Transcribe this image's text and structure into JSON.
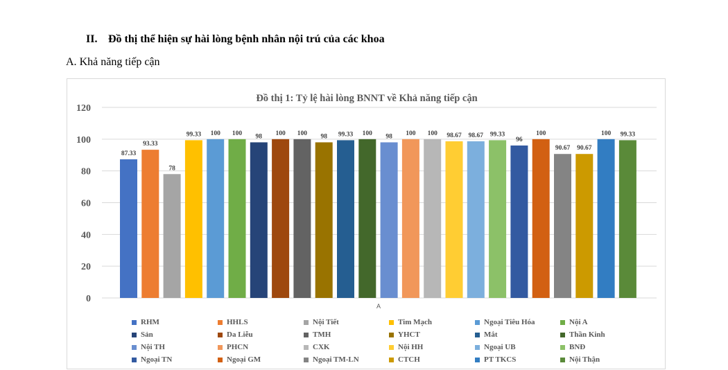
{
  "document": {
    "section_number": "II.",
    "section_title": "Đồ thị thể hiện sự hài lòng bệnh nhân nội trú của các khoa",
    "sub_letter": "A.",
    "sub_title": "Khả năng tiếp cận"
  },
  "chart_data": {
    "type": "bar",
    "title": "Đồ thị 1: Tỷ lệ hài lòng BNNT về Khả năng tiếp cận",
    "x_category_label": "A",
    "ylim": [
      0,
      120
    ],
    "yticks": [
      0,
      20,
      40,
      60,
      80,
      100,
      120
    ],
    "grid": true,
    "legend_position": "bottom",
    "series": [
      {
        "name": "RHM",
        "value": 87.33,
        "label": "87.33",
        "color": "#4472c4"
      },
      {
        "name": "HHLS",
        "value": 93.33,
        "label": "93.33",
        "color": "#ed7d31"
      },
      {
        "name": "Nội Tiết",
        "value": 78,
        "label": "78",
        "color": "#a5a5a5"
      },
      {
        "name": "Tim Mạch",
        "value": 99.33,
        "label": "99.33",
        "color": "#ffc000"
      },
      {
        "name": "Ngoại Tiêu Hóa",
        "value": 100,
        "label": "100",
        "color": "#5b9bd5"
      },
      {
        "name": "Nội A",
        "value": 100,
        "label": "100",
        "color": "#70ad47"
      },
      {
        "name": "Sản",
        "value": 98,
        "label": "98",
        "color": "#264478"
      },
      {
        "name": "Da Liễu",
        "value": 100,
        "label": "100",
        "color": "#9e480e"
      },
      {
        "name": "TMH",
        "value": 100,
        "label": "100",
        "color": "#636363"
      },
      {
        "name": "YHCT",
        "value": 98,
        "label": "98",
        "color": "#997300"
      },
      {
        "name": "Mắt",
        "value": 99.33,
        "label": "99.33",
        "color": "#255e91"
      },
      {
        "name": "Thần Kinh",
        "value": 100,
        "label": "100",
        "color": "#43682b"
      },
      {
        "name": " Nội TH",
        "value": 98,
        "label": "98",
        "color": "#698ed0"
      },
      {
        "name": "PHCN",
        "value": 100,
        "label": "100",
        "color": "#f1975a"
      },
      {
        "name": "CXK",
        "value": 100,
        "label": "100",
        "color": "#b7b7b7"
      },
      {
        "name": "Nội HH",
        "value": 98.67,
        "label": "98.67",
        "color": "#ffcd33"
      },
      {
        "name": "Ngoại UB",
        "value": 98.67,
        "label": "98.67",
        "color": "#7cafdd"
      },
      {
        "name": " BNĐ",
        "value": 99.33,
        "label": "99.33",
        "color": "#8cc168"
      },
      {
        "name": "Ngoại TN",
        "value": 96,
        "label": "96",
        "color": "#335aa1"
      },
      {
        "name": "Ngoại GM",
        "value": 100,
        "label": "100",
        "color": "#d26012"
      },
      {
        "name": "Ngoại TM-LN",
        "value": 90.67,
        "label": "90.67",
        "color": "#848484"
      },
      {
        "name": "CTCH",
        "value": 90.67,
        "label": "90.67",
        "color": "#cc9a00"
      },
      {
        "name": "PT TKCS",
        "value": 100,
        "label": "100",
        "color": "#327dc2"
      },
      {
        "name": "Nội Thận",
        "value": 99.33,
        "label": "99.33",
        "color": "#5a8a39"
      }
    ]
  }
}
